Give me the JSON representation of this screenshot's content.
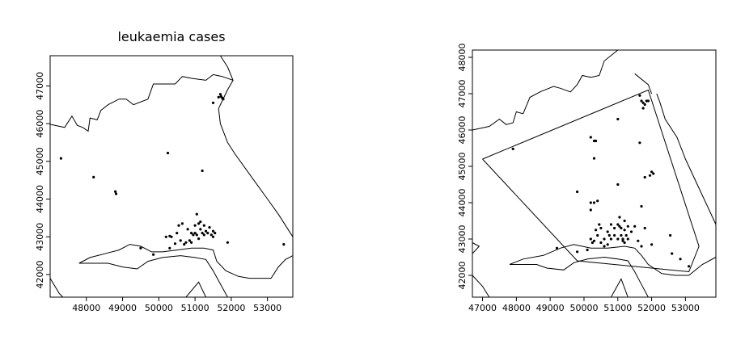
{
  "chart_data": [
    {
      "type": "scatter",
      "title": "leukaemia cases",
      "xlim": [
        47000,
        53700
      ],
      "ylim": [
        41400,
        47800
      ],
      "xticks": [
        48000,
        49000,
        50000,
        51000,
        52000,
        53000
      ],
      "yticks": [
        42000,
        43000,
        44000,
        45000,
        46000,
        47000
      ],
      "x_tick_labels": [
        "48000",
        "49000",
        "50000",
        "51000",
        "52000",
        "53000"
      ],
      "y_tick_labels": [
        "42000",
        "43000",
        "44000",
        "45000",
        "46000",
        "47000"
      ],
      "grid": false,
      "points": [
        [
          47300,
          45080
        ],
        [
          48200,
          44580
        ],
        [
          48800,
          44200
        ],
        [
          48820,
          44140
        ],
        [
          50250,
          45220
        ],
        [
          51200,
          44750
        ],
        [
          51500,
          46550
        ],
        [
          51700,
          46780
        ],
        [
          51720,
          46720
        ],
        [
          51750,
          46680
        ],
        [
          51780,
          46650
        ],
        [
          51650,
          46700
        ],
        [
          49500,
          42700
        ],
        [
          49850,
          42530
        ],
        [
          50200,
          43000
        ],
        [
          50300,
          43020
        ],
        [
          50300,
          42700
        ],
        [
          50450,
          42820
        ],
        [
          50500,
          43100
        ],
        [
          50550,
          43300
        ],
        [
          50600,
          42900
        ],
        [
          50650,
          43350
        ],
        [
          50700,
          42800
        ],
        [
          50750,
          42850
        ],
        [
          50800,
          43200
        ],
        [
          50850,
          42900
        ],
        [
          50900,
          43100
        ],
        [
          50950,
          43050
        ],
        [
          51000,
          43300
        ],
        [
          51050,
          43600
        ],
        [
          51100,
          43350
        ],
        [
          51100,
          42950
        ],
        [
          51150,
          43200
        ],
        [
          51200,
          43100
        ],
        [
          51250,
          43050
        ],
        [
          51300,
          43150
        ],
        [
          51350,
          43100
        ],
        [
          51400,
          43250
        ],
        [
          51450,
          43050
        ],
        [
          51500,
          43150
        ],
        [
          51500,
          43000
        ],
        [
          51550,
          43100
        ],
        [
          51000,
          43100
        ],
        [
          51250,
          43300
        ],
        [
          50900,
          42850
        ],
        [
          51900,
          42850
        ],
        [
          53450,
          42800
        ],
        [
          51050,
          43050
        ],
        [
          51150,
          43400
        ],
        [
          50350,
          43000
        ]
      ],
      "boundary": [
        [
          [
            47000,
            45980
          ],
          [
            47400,
            45900
          ],
          [
            47600,
            46200
          ],
          [
            47750,
            45950
          ],
          [
            47900,
            45900
          ],
          [
            48050,
            45800
          ],
          [
            48100,
            46150
          ],
          [
            48300,
            46100
          ],
          [
            48400,
            46350
          ],
          [
            48600,
            46500
          ],
          [
            48900,
            46650
          ],
          [
            49100,
            46650
          ],
          [
            49300,
            46500
          ],
          [
            49700,
            46650
          ],
          [
            49850,
            47050
          ],
          [
            50100,
            47050
          ],
          [
            50450,
            47050
          ],
          [
            50650,
            47250
          ],
          [
            50900,
            47200
          ],
          [
            51300,
            47150
          ],
          [
            51500,
            47300
          ],
          [
            51750,
            47250
          ],
          [
            52050,
            47150
          ],
          [
            51900,
            46900
          ],
          [
            51800,
            46700
          ],
          [
            51650,
            46400
          ],
          [
            51700,
            46000
          ],
          [
            51900,
            45500
          ],
          [
            52100,
            45200
          ],
          [
            52400,
            44800
          ],
          [
            52700,
            44400
          ],
          [
            53000,
            44000
          ],
          [
            53300,
            43600
          ],
          [
            53500,
            43300
          ],
          [
            53700,
            43000
          ]
        ],
        [
          [
            47800,
            42300
          ],
          [
            48100,
            42450
          ],
          [
            48500,
            42550
          ],
          [
            48900,
            42650
          ],
          [
            49200,
            42800
          ],
          [
            49500,
            42750
          ],
          [
            49800,
            42600
          ],
          [
            50100,
            42600
          ],
          [
            50500,
            42650
          ],
          [
            50900,
            42700
          ],
          [
            51250,
            42700
          ],
          [
            51500,
            42650
          ],
          [
            51600,
            42350
          ],
          [
            51850,
            42100
          ],
          [
            52200,
            41950
          ],
          [
            52500,
            41900
          ],
          [
            52800,
            41900
          ],
          [
            53100,
            41900
          ],
          [
            53300,
            42200
          ],
          [
            53500,
            42400
          ],
          [
            53700,
            42500
          ]
        ],
        [
          [
            47800,
            42300
          ],
          [
            48200,
            42300
          ],
          [
            48600,
            42300
          ],
          [
            49000,
            42200
          ],
          [
            49400,
            42150
          ],
          [
            49700,
            42350
          ],
          [
            50100,
            42450
          ],
          [
            50600,
            42500
          ],
          [
            51000,
            42450
          ],
          [
            51300,
            42400
          ],
          [
            51500,
            42100
          ],
          [
            51700,
            41750
          ],
          [
            51900,
            41400
          ]
        ],
        [
          [
            47000,
            41900
          ],
          [
            47250,
            41500
          ],
          [
            47350,
            41400
          ]
        ],
        [
          [
            50750,
            41400
          ],
          [
            51100,
            41800
          ],
          [
            51300,
            41400
          ]
        ],
        [
          [
            51700,
            47800
          ],
          [
            51900,
            47500
          ],
          [
            52050,
            47150
          ]
        ]
      ]
    },
    {
      "type": "scatter",
      "title": "",
      "xlim": [
        46700,
        53900
      ],
      "ylim": [
        41400,
        48200
      ],
      "xticks": [
        47000,
        48000,
        49000,
        50000,
        51000,
        52000,
        53000
      ],
      "yticks": [
        42000,
        43000,
        44000,
        45000,
        46000,
        47000,
        48000
      ],
      "x_tick_labels": [
        "47000",
        "48000",
        "49000",
        "50000",
        "51000",
        "52000",
        "53000"
      ],
      "y_tick_labels": [
        "42000",
        "43000",
        "44000",
        "45000",
        "46000",
        "47000",
        "48000"
      ],
      "grid": false,
      "polygon": [
        [
          47000,
          45200
        ],
        [
          51900,
          47100
        ],
        [
          53400,
          42800
        ],
        [
          53100,
          42100
        ],
        [
          49800,
          42400
        ],
        [
          47000,
          45200
        ]
      ],
      "points": [
        [
          47900,
          45480
        ],
        [
          49800,
          44300
        ],
        [
          50200,
          43800
        ],
        [
          50300,
          44000
        ],
        [
          50400,
          44050
        ],
        [
          50200,
          44000
        ],
        [
          50200,
          45800
        ],
        [
          50300,
          45700
        ],
        [
          50300,
          45220
        ],
        [
          50350,
          45700
        ],
        [
          51000,
          46300
        ],
        [
          51000,
          44500
        ],
        [
          51650,
          45650
        ],
        [
          51700,
          46800
        ],
        [
          51750,
          46750
        ],
        [
          51800,
          46700
        ],
        [
          51850,
          46800
        ],
        [
          51900,
          46800
        ],
        [
          51650,
          46950
        ],
        [
          51750,
          46600
        ],
        [
          52000,
          44850
        ],
        [
          51800,
          44700
        ],
        [
          51950,
          44750
        ],
        [
          52050,
          44800
        ],
        [
          52550,
          43100
        ],
        [
          52600,
          42600
        ],
        [
          52850,
          42450
        ],
        [
          53100,
          42250
        ],
        [
          52000,
          42850
        ],
        [
          51700,
          43900
        ],
        [
          49200,
          42750
        ],
        [
          49800,
          42650
        ],
        [
          50100,
          42700
        ],
        [
          50200,
          43000
        ],
        [
          50300,
          42950
        ],
        [
          50400,
          43100
        ],
        [
          50500,
          43300
        ],
        [
          50600,
          42800
        ],
        [
          50700,
          43200
        ],
        [
          50800,
          43400
        ],
        [
          50900,
          43300
        ],
        [
          51000,
          43400
        ],
        [
          51050,
          43350
        ],
        [
          51100,
          43100
        ],
        [
          51150,
          43000
        ],
        [
          51200,
          43250
        ],
        [
          51250,
          43100
        ],
        [
          51300,
          43350
        ],
        [
          51400,
          43200
        ],
        [
          51500,
          43350
        ],
        [
          51600,
          42950
        ],
        [
          51700,
          42800
        ],
        [
          50600,
          43000
        ],
        [
          50700,
          42850
        ],
        [
          50800,
          43000
        ],
        [
          50900,
          43100
        ],
        [
          51000,
          43000
        ],
        [
          51100,
          43300
        ],
        [
          51150,
          42950
        ],
        [
          50500,
          42900
        ],
        [
          50350,
          43250
        ],
        [
          50450,
          43400
        ],
        [
          51050,
          43600
        ],
        [
          51200,
          43500
        ],
        [
          50750,
          43100
        ],
        [
          51300,
          43000
        ],
        [
          51200,
          42900
        ],
        [
          50250,
          42900
        ],
        [
          51800,
          43300
        ]
      ],
      "boundary": [
        [
          [
            46700,
            46000
          ],
          [
            47200,
            46100
          ],
          [
            47500,
            46300
          ],
          [
            47700,
            46150
          ],
          [
            47900,
            46200
          ],
          [
            48000,
            46500
          ],
          [
            48200,
            46450
          ],
          [
            48400,
            46900
          ],
          [
            48700,
            47050
          ],
          [
            49100,
            47200
          ],
          [
            49300,
            47150
          ],
          [
            49600,
            47050
          ],
          [
            49800,
            47250
          ],
          [
            49950,
            47500
          ],
          [
            50200,
            47450
          ],
          [
            50450,
            47500
          ],
          [
            50600,
            47900
          ],
          [
            51000,
            48200
          ]
        ],
        [
          [
            51500,
            47550
          ],
          [
            51900,
            47250
          ],
          [
            52000,
            47000
          ]
        ],
        [
          [
            52150,
            47000
          ],
          [
            52250,
            46750
          ],
          [
            52400,
            46300
          ],
          [
            52750,
            45800
          ],
          [
            53000,
            45200
          ],
          [
            53300,
            44600
          ],
          [
            53600,
            44000
          ],
          [
            53900,
            43400
          ]
        ],
        [
          [
            47800,
            42300
          ],
          [
            48200,
            42450
          ],
          [
            48800,
            42550
          ],
          [
            49300,
            42750
          ],
          [
            49700,
            42850
          ],
          [
            50200,
            42750
          ],
          [
            50700,
            42750
          ],
          [
            51200,
            42800
          ],
          [
            51500,
            42750
          ],
          [
            51700,
            42550
          ],
          [
            51900,
            42300
          ],
          [
            52300,
            42050
          ],
          [
            52700,
            42000
          ],
          [
            53100,
            42000
          ],
          [
            53500,
            42300
          ],
          [
            53900,
            42500
          ]
        ],
        [
          [
            47800,
            42300
          ],
          [
            48200,
            42300
          ],
          [
            48600,
            42300
          ],
          [
            48900,
            42200
          ],
          [
            49400,
            42150
          ],
          [
            49700,
            42350
          ],
          [
            50100,
            42450
          ],
          [
            50600,
            42500
          ],
          [
            51000,
            42450
          ],
          [
            51300,
            42400
          ],
          [
            51500,
            42100
          ],
          [
            51700,
            41750
          ],
          [
            51900,
            41400
          ]
        ],
        [
          [
            46700,
            42900
          ],
          [
            46900,
            42800
          ],
          [
            46700,
            42600
          ]
        ],
        [
          [
            46700,
            42000
          ],
          [
            47000,
            41700
          ],
          [
            47200,
            41400
          ]
        ],
        [
          [
            50800,
            41400
          ],
          [
            51100,
            41900
          ],
          [
            51300,
            41400
          ]
        ]
      ]
    }
  ]
}
